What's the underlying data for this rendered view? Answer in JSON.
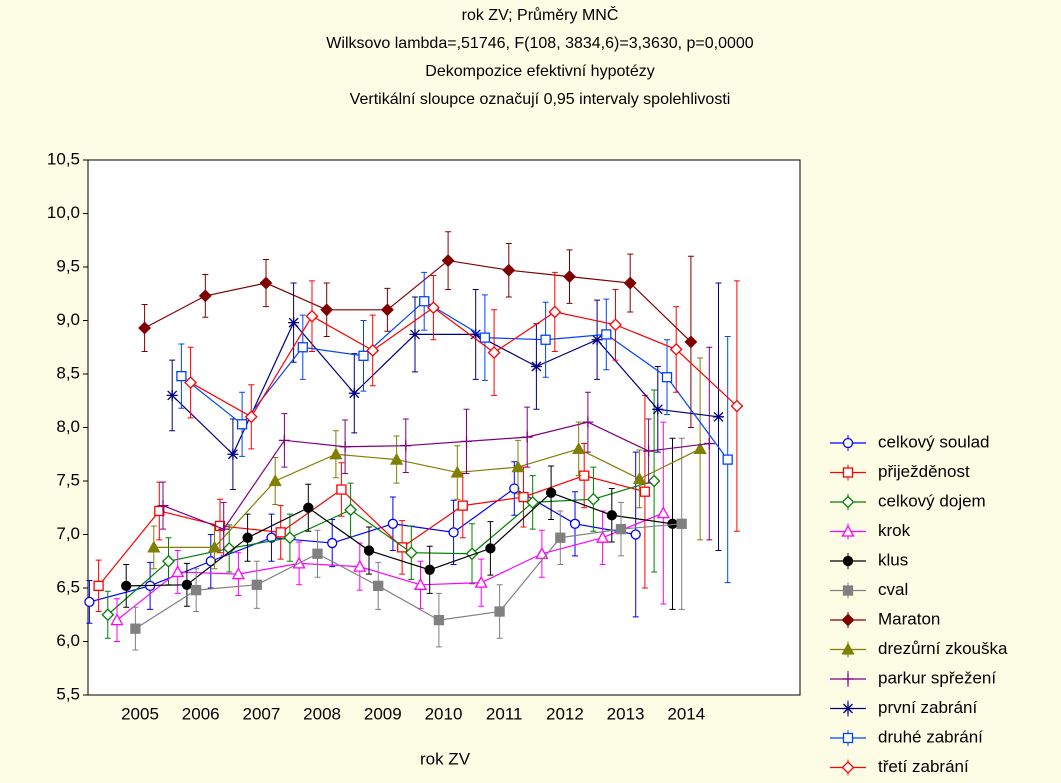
{
  "chart_data": {
    "type": "line",
    "title": "rok ZV; Průměry MNČ",
    "subtitles": [
      "Wilksovo lambda=,51746, F(108, 3834,6)=3,3630, p=0,0000",
      "Dekompozice efektivní hypotézy",
      "Vertikální sloupce označují 0,95 intervaly spolehlivosti"
    ],
    "x_label": "rok ZV",
    "categories": [
      "2005",
      "2006",
      "2007",
      "2008",
      "2009",
      "2010",
      "2011",
      "2012",
      "2013",
      "2014"
    ],
    "ylim": [
      5.5,
      10.5
    ],
    "yticks": [
      {
        "value": 5.5,
        "label": "5,5"
      },
      {
        "value": 6.0,
        "label": "6,0"
      },
      {
        "value": 6.5,
        "label": "6,5"
      },
      {
        "value": 7.0,
        "label": "7,0"
      },
      {
        "value": 7.5,
        "label": "7,5"
      },
      {
        "value": 8.0,
        "label": "8,0"
      },
      {
        "value": 8.5,
        "label": "8,5"
      },
      {
        "value": 9.0,
        "label": "9,0"
      },
      {
        "value": 9.5,
        "label": "9,5"
      },
      {
        "value": 10.0,
        "label": "10,0"
      },
      {
        "value": 10.5,
        "label": "10,5"
      }
    ],
    "legend": "right",
    "series": [
      {
        "name": "celkový soulad",
        "color": "#0000ff",
        "marker": "circle-open",
        "values": [
          6.37,
          6.52,
          6.75,
          6.97,
          6.92,
          7.1,
          7.02,
          7.43,
          7.1,
          7.0
        ],
        "errors": [
          0.2,
          0.22,
          0.25,
          0.22,
          0.22,
          0.25,
          0.3,
          0.25,
          0.3,
          0.77
        ]
      },
      {
        "name": "přiježděnost",
        "color": "#ff0000",
        "marker": "square-open",
        "values": [
          6.52,
          7.22,
          7.08,
          7.02,
          7.42,
          6.88,
          7.27,
          7.35,
          7.55,
          7.4
        ],
        "errors": [
          0.24,
          0.27,
          0.25,
          0.25,
          0.25,
          0.25,
          0.3,
          0.28,
          0.3,
          0.9
        ]
      },
      {
        "name": "celkový dojem",
        "color": "#008000",
        "marker": "diamond-open",
        "values": [
          6.25,
          6.75,
          6.87,
          6.97,
          7.23,
          6.83,
          6.82,
          7.3,
          7.33,
          7.5
        ],
        "errors": [
          0.22,
          0.22,
          0.22,
          0.22,
          0.25,
          0.25,
          0.28,
          0.25,
          0.3,
          0.85
        ]
      },
      {
        "name": "krok",
        "color": "#ff00ff",
        "marker": "triangle-open",
        "values": [
          6.2,
          6.65,
          6.63,
          6.73,
          6.7,
          6.53,
          6.55,
          6.82,
          6.97,
          7.2
        ],
        "errors": [
          0.2,
          0.2,
          0.2,
          0.2,
          0.22,
          0.22,
          0.22,
          0.22,
          0.25,
          0.85
        ]
      },
      {
        "name": "klus",
        "color": "#000000",
        "marker": "circle-filled",
        "values": [
          6.52,
          6.53,
          6.97,
          7.25,
          6.85,
          6.67,
          6.87,
          7.39,
          7.18,
          7.1
        ],
        "errors": [
          0.2,
          0.2,
          0.22,
          0.22,
          0.22,
          0.22,
          0.25,
          0.25,
          0.25,
          0.8
        ]
      },
      {
        "name": "cval",
        "color": "#808080",
        "marker": "square-filled",
        "values": [
          6.12,
          6.48,
          6.53,
          6.82,
          6.52,
          6.2,
          6.28,
          6.97,
          7.05,
          7.1
        ],
        "errors": [
          0.2,
          0.2,
          0.22,
          0.22,
          0.22,
          0.25,
          0.25,
          0.25,
          0.25,
          0.8
        ]
      },
      {
        "name": "Maraton",
        "color": "#800000",
        "marker": "diamond-filled",
        "values": [
          8.93,
          9.23,
          9.35,
          9.1,
          9.1,
          9.56,
          9.47,
          9.41,
          9.35,
          8.8
        ],
        "errors": [
          0.22,
          0.2,
          0.22,
          0.25,
          0.2,
          0.27,
          0.25,
          0.25,
          0.27,
          0.8
        ]
      },
      {
        "name": "drezůrní zkouška",
        "color": "#808000",
        "marker": "triangle-filled",
        "values": [
          6.88,
          6.88,
          7.5,
          7.75,
          7.7,
          7.58,
          7.63,
          7.8,
          7.52,
          7.8
        ],
        "errors": [
          0.2,
          0.2,
          0.22,
          0.22,
          0.22,
          0.25,
          0.25,
          0.25,
          0.27,
          0.85
        ]
      },
      {
        "name": "parkur spřežení",
        "color": "#800080",
        "marker": "plus",
        "values": [
          7.27,
          7.05,
          7.88,
          7.82,
          7.83,
          7.87,
          7.91,
          8.05,
          7.78,
          7.85
        ],
        "errors": [
          0.22,
          0.25,
          0.25,
          0.25,
          0.25,
          0.3,
          0.28,
          0.28,
          0.3,
          0.9
        ]
      },
      {
        "name": "první zabrání",
        "color": "#000080",
        "marker": "asterisk",
        "values": [
          8.3,
          7.75,
          8.98,
          8.32,
          8.87,
          8.87,
          8.57,
          8.82,
          8.17,
          8.1
        ],
        "errors": [
          0.33,
          0.33,
          0.37,
          0.37,
          0.35,
          0.42,
          0.4,
          0.37,
          0.4,
          1.25
        ]
      },
      {
        "name": "druhé zabrání",
        "color": "#0044ff",
        "marker": "square-open",
        "values": [
          8.48,
          8.03,
          8.75,
          8.67,
          9.18,
          8.84,
          8.82,
          8.87,
          8.47,
          7.7
        ],
        "errors": [
          0.3,
          0.3,
          0.3,
          0.33,
          0.27,
          0.4,
          0.35,
          0.33,
          0.35,
          1.15
        ]
      },
      {
        "name": "třetí zabrání",
        "color": "#ff0000",
        "marker": "diamond-open",
        "values": [
          8.42,
          8.1,
          9.04,
          8.72,
          9.12,
          8.7,
          9.08,
          8.96,
          8.73,
          8.2
        ],
        "errors": [
          0.33,
          0.3,
          0.33,
          0.33,
          0.3,
          0.4,
          0.37,
          0.33,
          0.4,
          1.17
        ]
      }
    ]
  }
}
